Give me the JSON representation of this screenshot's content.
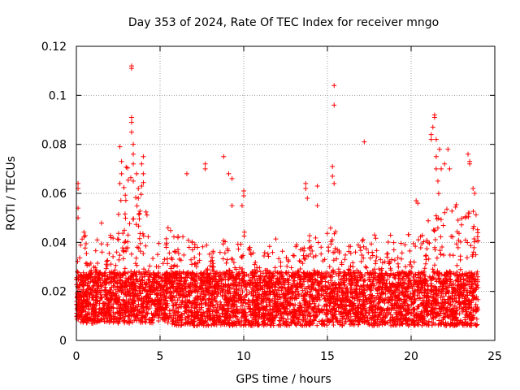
{
  "chart_data": {
    "type": "scatter",
    "title": "Day 353 of 2024, Rate Of TEC Index for receiver mngo",
    "xlabel": "GPS time / hours",
    "ylabel": "ROTI / TECUs",
    "xlim": [
      0,
      25
    ],
    "ylim": [
      0,
      0.12
    ],
    "x_ticks": [
      0,
      5,
      10,
      15,
      20,
      25
    ],
    "y_ticks": [
      0,
      0.02,
      0.04,
      0.06,
      0.08,
      0.1,
      0.12
    ],
    "x_tick_labels": [
      "0",
      "5",
      "10",
      "15",
      "20",
      "25"
    ],
    "y_tick_labels": [
      "0",
      "0.02",
      "0.04",
      "0.06",
      "0.08",
      "0.1",
      "0.12"
    ],
    "grid": true,
    "marker": "+",
    "series": [
      {
        "name": "ROTI",
        "color": "#ff0000",
        "envelope_x": [
          0,
          0.5,
          1,
          1.5,
          2,
          2.5,
          3,
          3.5,
          4,
          4.5,
          5,
          5.5,
          6,
          6.5,
          7,
          7.5,
          8,
          8.5,
          9,
          9.5,
          10,
          10.5,
          11,
          11.5,
          12,
          12.5,
          13,
          13.5,
          14,
          14.5,
          15,
          15.5,
          16,
          16.5,
          17,
          17.5,
          18,
          18.5,
          19,
          19.5,
          20,
          20.5,
          21,
          21.5,
          22,
          22.5,
          23,
          23.5,
          24
        ],
        "envelope_low": [
          0.008,
          0.007,
          0.007,
          0.008,
          0.007,
          0.007,
          0.007,
          0.007,
          0.007,
          0.007,
          0.008,
          0.007,
          0.006,
          0.006,
          0.006,
          0.006,
          0.006,
          0.006,
          0.006,
          0.006,
          0.006,
          0.006,
          0.006,
          0.006,
          0.006,
          0.006,
          0.006,
          0.006,
          0.006,
          0.006,
          0.006,
          0.006,
          0.006,
          0.006,
          0.006,
          0.006,
          0.006,
          0.006,
          0.006,
          0.006,
          0.006,
          0.006,
          0.006,
          0.006,
          0.006,
          0.006,
          0.006,
          0.006,
          0.006
        ],
        "envelope_high": [
          0.04,
          0.045,
          0.038,
          0.048,
          0.042,
          0.06,
          0.075,
          0.06,
          0.07,
          0.042,
          0.04,
          0.048,
          0.042,
          0.045,
          0.04,
          0.04,
          0.04,
          0.035,
          0.045,
          0.04,
          0.045,
          0.038,
          0.035,
          0.04,
          0.042,
          0.04,
          0.038,
          0.042,
          0.045,
          0.04,
          0.05,
          0.045,
          0.04,
          0.042,
          0.04,
          0.045,
          0.042,
          0.045,
          0.042,
          0.04,
          0.045,
          0.042,
          0.05,
          0.065,
          0.055,
          0.06,
          0.05,
          0.055,
          0.055
        ],
        "points": [
          [
            0.1,
            0.064
          ],
          [
            0.1,
            0.062
          ],
          [
            0.1,
            0.054
          ],
          [
            0.1,
            0.05
          ],
          [
            2.6,
            0.079
          ],
          [
            2.7,
            0.073
          ],
          [
            2.7,
            0.068
          ],
          [
            2.6,
            0.064
          ],
          [
            3.3,
            0.112
          ],
          [
            3.3,
            0.111
          ],
          [
            3.3,
            0.091
          ],
          [
            3.3,
            0.089
          ],
          [
            3.3,
            0.085
          ],
          [
            3.4,
            0.08
          ],
          [
            3.4,
            0.076
          ],
          [
            3.4,
            0.072
          ],
          [
            3.4,
            0.065
          ],
          [
            3.6,
            0.068
          ],
          [
            3.7,
            0.062
          ],
          [
            3.7,
            0.058
          ],
          [
            3.9,
            0.072
          ],
          [
            4.0,
            0.075
          ],
          [
            4.0,
            0.068
          ],
          [
            3.9,
            0.063
          ],
          [
            6.6,
            0.068
          ],
          [
            7.7,
            0.072
          ],
          [
            7.7,
            0.07
          ],
          [
            8.8,
            0.075
          ],
          [
            9.1,
            0.068
          ],
          [
            9.3,
            0.066
          ],
          [
            9.3,
            0.055
          ],
          [
            10.0,
            0.061
          ],
          [
            10.0,
            0.059
          ],
          [
            9.9,
            0.055
          ],
          [
            13.7,
            0.064
          ],
          [
            13.7,
            0.062
          ],
          [
            13.8,
            0.058
          ],
          [
            14.4,
            0.063
          ],
          [
            14.4,
            0.055
          ],
          [
            15.3,
            0.071
          ],
          [
            15.3,
            0.067
          ],
          [
            15.4,
            0.064
          ],
          [
            15.4,
            0.104
          ],
          [
            15.4,
            0.096
          ],
          [
            17.2,
            0.081
          ],
          [
            20.3,
            0.057
          ],
          [
            20.4,
            0.056
          ],
          [
            21.2,
            0.084
          ],
          [
            21.2,
            0.082
          ],
          [
            21.3,
            0.087
          ],
          [
            21.4,
            0.091
          ],
          [
            21.4,
            0.092
          ],
          [
            21.5,
            0.082
          ],
          [
            21.5,
            0.075
          ],
          [
            21.5,
            0.07
          ],
          [
            21.6,
            0.065
          ],
          [
            21.7,
            0.078
          ],
          [
            21.8,
            0.07
          ],
          [
            22.0,
            0.072
          ],
          [
            22.2,
            0.078
          ],
          [
            22.3,
            0.07
          ],
          [
            23.4,
            0.076
          ],
          [
            23.5,
            0.073
          ],
          [
            23.5,
            0.072
          ],
          [
            23.7,
            0.062
          ],
          [
            23.8,
            0.06
          ]
        ]
      }
    ]
  }
}
